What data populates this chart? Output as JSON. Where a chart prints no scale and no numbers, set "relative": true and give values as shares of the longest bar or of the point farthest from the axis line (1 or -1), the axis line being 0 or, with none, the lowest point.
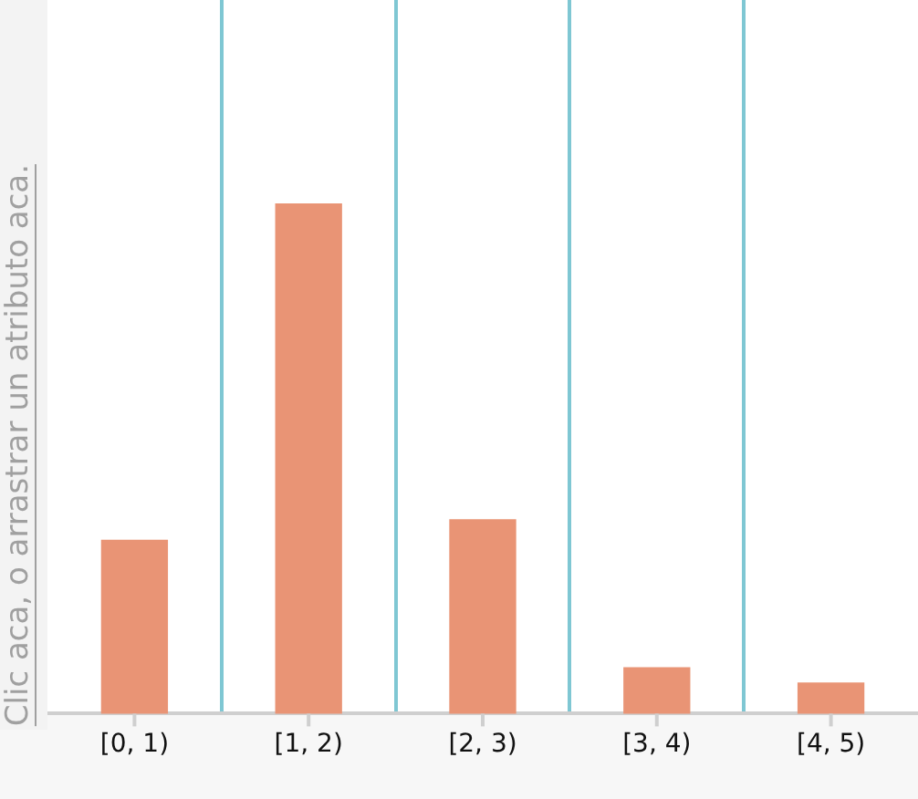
{
  "chart_data": {
    "type": "bar",
    "ylabel": "Clic aca, o arrastrar un atributo aca.",
    "categories": [
      "[0, 1)",
      "[1, 2)",
      "[2, 3)",
      "[3, 4)",
      "[4, 5)"
    ],
    "values": [
      0.34,
      1,
      0.38,
      0.09,
      0.06
    ],
    "color": "#e99475",
    "relative": true,
    "grid": "x"
  }
}
